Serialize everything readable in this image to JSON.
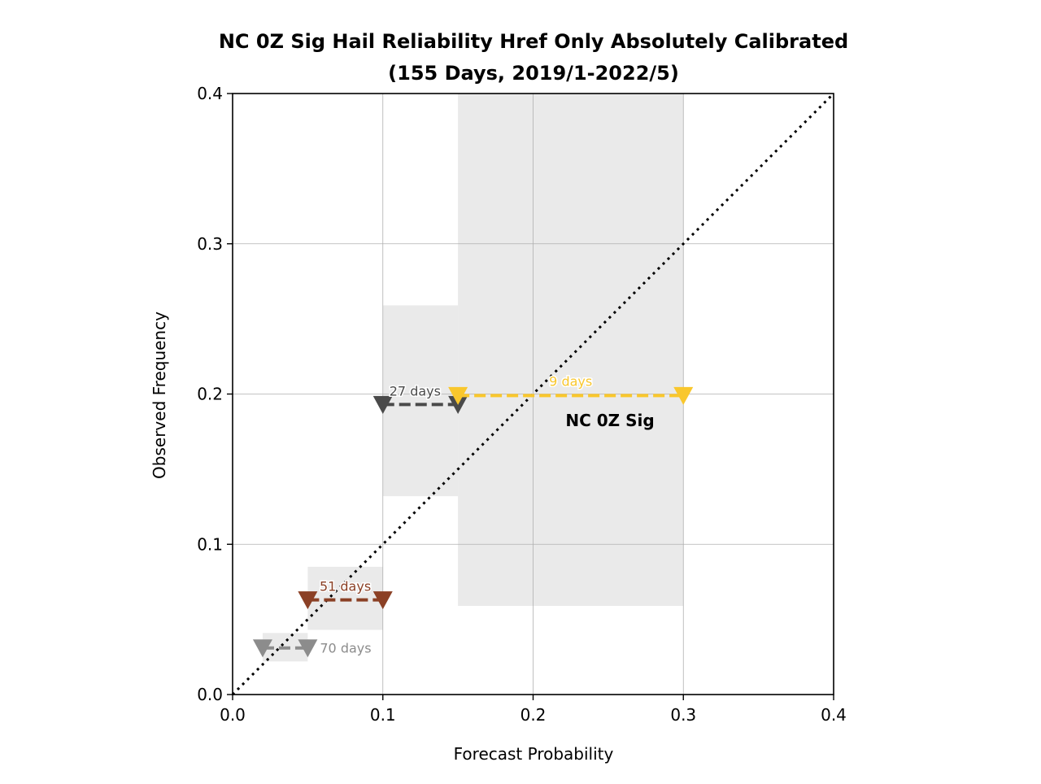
{
  "chart_data": {
    "type": "scatter",
    "title": "NC 0Z Sig Hail Reliability Href Only Absolutely Calibrated",
    "subtitle": "(155 Days, 2019/1-2022/5)",
    "xlabel": "Forecast Probability",
    "ylabel": "Observed Frequency",
    "xlim": [
      0.0,
      0.4
    ],
    "ylim": [
      0.0,
      0.4
    ],
    "xticks": [
      "0.0",
      "0.1",
      "0.2",
      "0.3",
      "0.4"
    ],
    "yticks": [
      "0.0",
      "0.1",
      "0.2",
      "0.3",
      "0.4"
    ],
    "grid": true,
    "series_label": "NC 0Z Sig",
    "diagonal": [
      [
        0.0,
        0.0
      ],
      [
        0.4,
        0.4
      ]
    ],
    "bins": [
      {
        "label": "70 days",
        "x_start": 0.02,
        "x_end": 0.05,
        "observed": 0.031,
        "ci": [
          0.022,
          0.041
        ],
        "color": "#8c8c8c"
      },
      {
        "label": "51 days",
        "x_start": 0.05,
        "x_end": 0.1,
        "observed": 0.063,
        "ci": [
          0.043,
          0.085
        ],
        "color": "#8b4025"
      },
      {
        "label": "27 days",
        "x_start": 0.1,
        "x_end": 0.15,
        "observed": 0.193,
        "ci": [
          0.132,
          0.259
        ],
        "color": "#4a4a4a"
      },
      {
        "label": "9 days",
        "x_start": 0.15,
        "x_end": 0.3,
        "observed": 0.199,
        "ci": [
          0.059,
          0.4
        ],
        "color": "#f9c72d"
      }
    ]
  }
}
